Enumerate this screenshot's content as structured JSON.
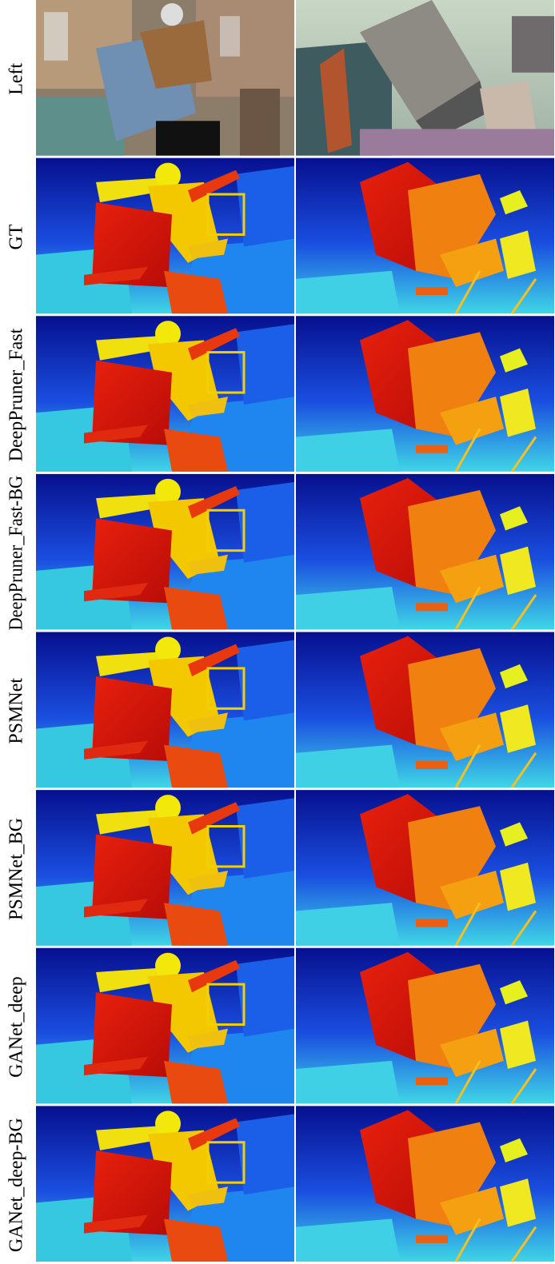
{
  "figure": {
    "row_labels": [
      "Left",
      "GT",
      "DeepPruner_Fast",
      "DeepPruner_Fast-BG",
      "PSMNet",
      "PSMNet_BG",
      "GANet_deep",
      "GANet_deep-BG"
    ]
  }
}
